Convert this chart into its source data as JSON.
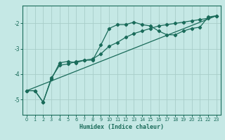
{
  "xlabel": "Humidex (Indice chaleur)",
  "ylabel": "",
  "background_color": "#c5e8e5",
  "grid_color": "#a8cdc9",
  "line_color": "#1a6b5a",
  "xlim": [
    -0.5,
    23.5
  ],
  "ylim": [
    -5.6,
    -1.3
  ],
  "yticks": [
    -5,
    -4,
    -3,
    -2
  ],
  "xticks": [
    0,
    1,
    2,
    3,
    4,
    5,
    6,
    7,
    8,
    9,
    10,
    11,
    12,
    13,
    14,
    15,
    16,
    17,
    18,
    19,
    20,
    21,
    22,
    23
  ],
  "curve1_x": [
    0,
    1,
    2,
    3,
    4,
    5,
    6,
    7,
    8,
    9,
    10,
    11,
    12,
    13,
    14,
    15,
    16,
    17,
    18,
    19,
    20,
    21,
    22,
    23
  ],
  "curve1_y": [
    -4.65,
    -4.65,
    -5.1,
    -4.2,
    -3.55,
    -3.5,
    -3.55,
    -3.45,
    -3.45,
    -2.85,
    -2.2,
    -2.05,
    -2.05,
    -1.95,
    -2.05,
    -2.1,
    -2.3,
    -2.45,
    -2.45,
    -2.3,
    -2.2,
    -2.15,
    -1.75,
    -1.7
  ],
  "curve2_x": [
    0,
    1,
    2,
    3,
    4,
    5,
    6,
    7,
    8,
    9,
    10,
    11,
    12,
    13,
    14,
    15,
    16,
    17,
    18,
    19,
    20,
    21,
    22,
    23
  ],
  "curve2_y": [
    -4.65,
    -4.65,
    -5.1,
    -4.15,
    -3.65,
    -3.6,
    -3.5,
    -3.45,
    -3.4,
    -3.2,
    -2.9,
    -2.75,
    -2.55,
    -2.4,
    -2.3,
    -2.2,
    -2.1,
    -2.05,
    -2.0,
    -1.95,
    -1.9,
    -1.85,
    -1.8,
    -1.7
  ],
  "line1_x": [
    0,
    23
  ],
  "line1_y": [
    -4.65,
    -1.7
  ]
}
